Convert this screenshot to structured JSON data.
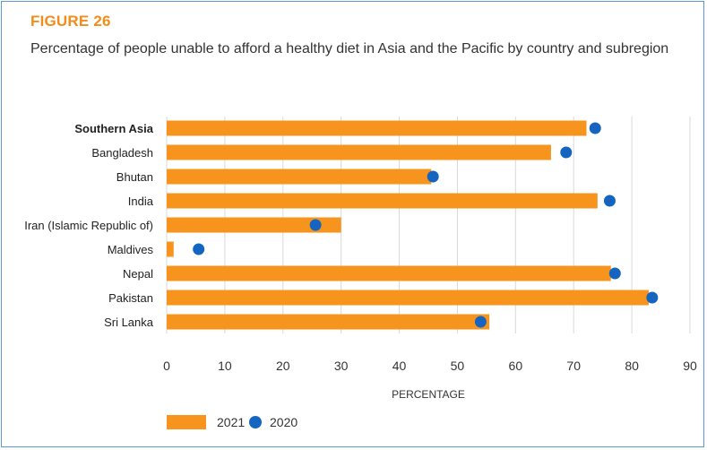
{
  "figure_label": "FIGURE 26",
  "chart_data": {
    "type": "bar",
    "orientation": "horizontal",
    "title": "Percentage of people unable to afford a healthy diet in Asia and the Pacific by country and subregion",
    "xlabel": "PERCENTAGE",
    "ylabel": "",
    "xlim": [
      0,
      90
    ],
    "xticks": [
      "0",
      "10",
      "20",
      "30",
      "40",
      "50",
      "60",
      "70",
      "80",
      "90"
    ],
    "grid": "vertical",
    "legend_position": "bottom-left",
    "categories": [
      "Southern Asia",
      "Bangladesh",
      "Bhutan",
      "India",
      "Iran (Islamic Republic of)",
      "Maldives",
      "Nepal",
      "Pakistan",
      "Sri Lanka"
    ],
    "bold_categories": [
      "Southern Asia"
    ],
    "series": [
      {
        "name": "2021",
        "marker": "bar",
        "color": "#f7941d",
        "values": [
          72.2,
          66.1,
          45.5,
          74.1,
          30.0,
          1.2,
          76.4,
          82.9,
          55.5
        ]
      },
      {
        "name": "2020",
        "marker": "dot",
        "color": "#1565c0",
        "values": [
          73.7,
          68.7,
          45.8,
          76.2,
          25.6,
          5.5,
          77.1,
          83.5,
          54.0
        ]
      }
    ]
  }
}
